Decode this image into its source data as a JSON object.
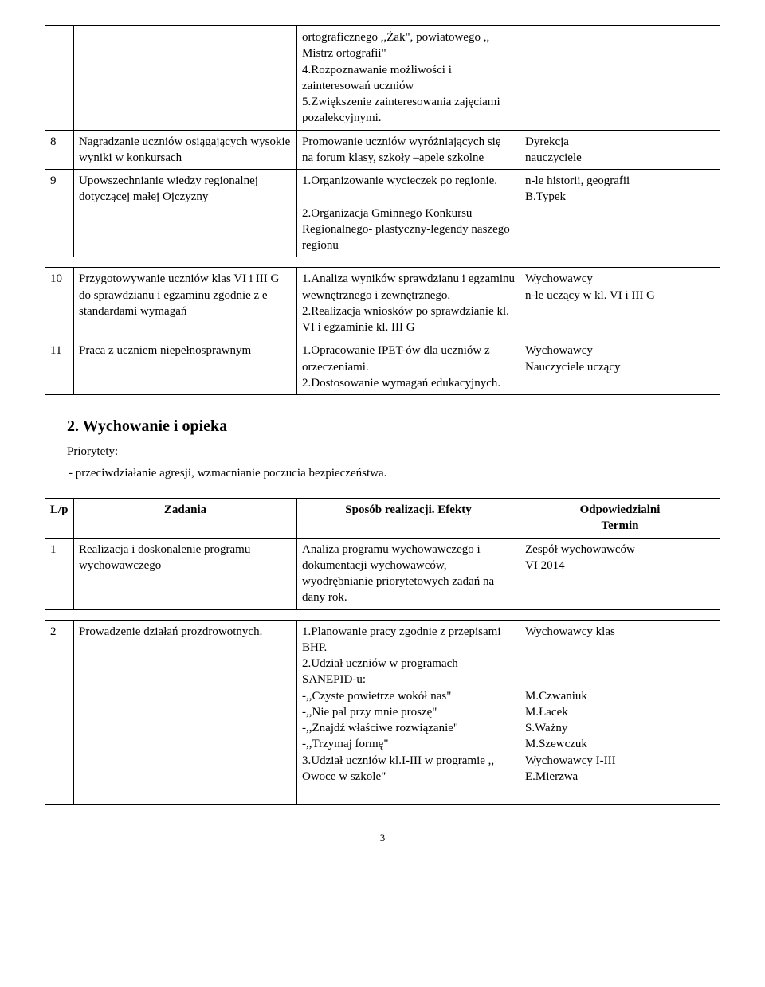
{
  "table1": {
    "rows": [
      {
        "n": "",
        "a": "",
        "b": "ortograficznego ,,Żak\", powiatowego ,, Mistrz ortografii\"\n4.Rozpoznawanie możliwości i zainteresowań uczniów\n5.Zwiększenie zainteresowania zajęciami pozalekcyjnymi.",
        "c": ""
      },
      {
        "n": "8",
        "a": "Nagradzanie uczniów osiągających wysokie wyniki w konkursach",
        "b": "Promowanie uczniów wyróżniających się na forum klasy, szkoły –apele szkolne",
        "c": "Dyrekcja\nnauczyciele"
      },
      {
        "n": "9",
        "a": "Upowszechnianie wiedzy regionalnej dotyczącej małej Ojczyzny",
        "b": "1.Organizowanie wycieczek po regionie.\n\n2.Organizacja  Gminnego Konkursu Regionalnego- plastyczny-legendy naszego regionu",
        "c": "n-le historii, geografii\nB.Typek"
      }
    ]
  },
  "table2": {
    "rows": [
      {
        "n": "10",
        "a": "Przygotowywanie uczniów klas VI i III G do sprawdzianu i egzaminu zgodnie z e standardami wymagań",
        "b": "1.Analiza wyników sprawdzianu i egzaminu wewnętrznego i zewnętrznego.\n2.Realizacja wniosków po sprawdzianie kl. VI  i egzaminie kl. III G",
        "c": "Wychowawcy\nn-le uczący w kl. VI i III G"
      },
      {
        "n": "11",
        "a": "Praca z uczniem niepełnosprawnym",
        "b": "1.Opracowanie IPET-ów dla uczniów z orzeczeniami.\n2.Dostosowanie wymagań edukacyjnych.",
        "c": "Wychowawcy\nNauczyciele uczący"
      }
    ]
  },
  "section2": {
    "heading": "2. Wychowanie i opieka",
    "priorytety_label": "Priorytety:",
    "priorytety_text": "- przeciwdziałanie agresji,  wzmacnianie poczucia bezpieczeństwa."
  },
  "table3": {
    "header": {
      "n": "L/p",
      "a": "Zadania",
      "b": "Sposób realizacji. Efekty",
      "c": "Odpowiedzialni\nTermin"
    },
    "rows": [
      {
        "n": "1",
        "a": "Realizacja i doskonalenie programu wychowawczego",
        "b": "Analiza programu wychowawczego i dokumentacji wychowawców, wyodrębnianie priorytetowych zadań na dany rok.",
        "c": "Zespół wychowawców\nVI  2014"
      }
    ]
  },
  "table4": {
    "rows": [
      {
        "n": "2",
        "a": "Prowadzenie działań prozdrowotnych.",
        "b": "1.Planowanie pracy zgodnie z przepisami BHP.\n2.Udział uczniów w programach SANEPID-u:\n-,,Czyste powietrze wokół nas\"\n-,,Nie pal przy mnie proszę\"\n-,,Znajdź właściwe rozwiązanie\"\n-,,Trzymaj formę\"\n3.Udział  uczniów kl.I-III  w programie ,, Owoce w szkole\"",
        "c": "Wychowawcy klas\n\n\n\nM.Czwaniuk\nM.Łacek\nS.Ważny\nM.Szewczuk\nWychowawcy I-III\nE.Mierzwa\n\n"
      }
    ]
  },
  "pageNumber": "3"
}
